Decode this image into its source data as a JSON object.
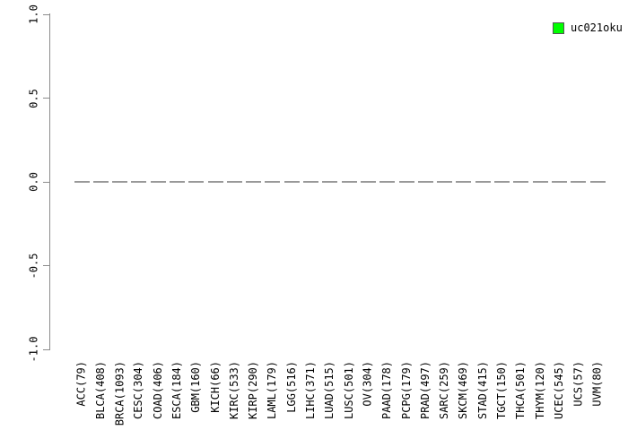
{
  "figure": {
    "background": "#ffffff",
    "legend": {
      "label": "uc021oku",
      "swatch_color": "#00ff00",
      "swatch_border": "#555555"
    }
  },
  "chart_data": {
    "type": "scatter",
    "marker": "dash",
    "title": "",
    "xlabel": "",
    "ylabel": "",
    "categories": [
      "ACC(79)",
      "BLCA(408)",
      "BRCA(1093)",
      "CESC(304)",
      "COAD(406)",
      "ESCA(184)",
      "GBM(160)",
      "KICH(66)",
      "KIRC(533)",
      "KIRP(290)",
      "LAML(179)",
      "LGG(516)",
      "LIHC(371)",
      "LUAD(515)",
      "LUSC(501)",
      "OV(304)",
      "PAAD(178)",
      "PCPG(179)",
      "PRAD(497)",
      "SARC(259)",
      "SKCM(469)",
      "STAD(415)",
      "TGCT(150)",
      "THCA(501)",
      "THYM(120)",
      "UCEC(545)",
      "UCS(57)",
      "UVM(80)"
    ],
    "series": [
      {
        "name": "uc021oku",
        "color": "#00ff00",
        "values": [
          0,
          0,
          0,
          0,
          0,
          0,
          0,
          0,
          0,
          0,
          0,
          0,
          0,
          0,
          0,
          0,
          0,
          0,
          0,
          0,
          0,
          0,
          0,
          0,
          0,
          0,
          0,
          0
        ]
      }
    ],
    "ylim": [
      -1.0,
      1.0
    ],
    "yticks": [
      1.0,
      0.5,
      0.0,
      -0.5,
      -1.0
    ],
    "ytick_labels": [
      "1.0",
      "0.5",
      "0.0",
      "-0.5",
      "-1.0"
    ],
    "legend_position": "top-right",
    "grid": false,
    "axis_color": "#8c8c8c",
    "marker_color": "#999999",
    "x_axis_label_rotation": -90
  }
}
